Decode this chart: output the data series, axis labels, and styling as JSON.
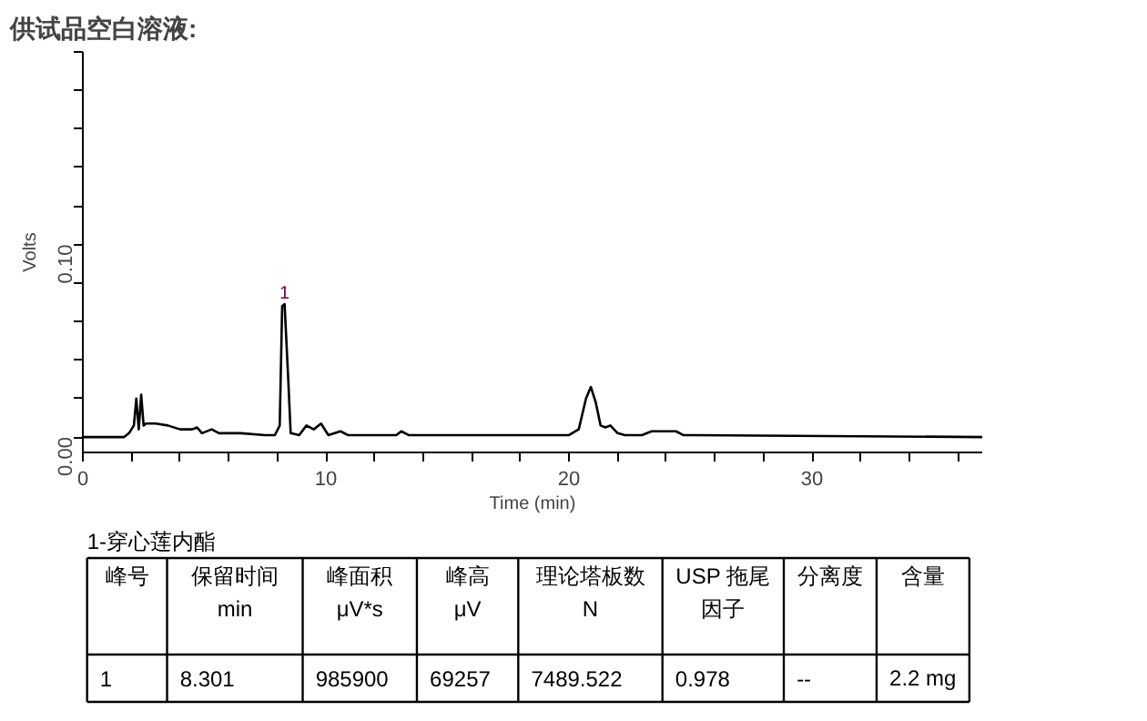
{
  "chart_data": {
    "type": "line",
    "title": "供试品空白溶液:",
    "xlabel": "Time (min)",
    "ylabel": "Volts",
    "xlim": [
      0,
      37
    ],
    "ylim": [
      -0.008,
      0.2
    ],
    "xticks": [
      0,
      {
        "value": 2,
        "label": null
      },
      {
        "value": 4,
        "label": null
      },
      {
        "value": 6,
        "label": null
      },
      {
        "value": 8,
        "label": null
      },
      10,
      {
        "value": 12,
        "label": null
      },
      {
        "value": 14,
        "label": null
      },
      {
        "value": 16,
        "label": null
      },
      {
        "value": 18,
        "label": null
      },
      20,
      {
        "value": 22,
        "label": null
      },
      {
        "value": 24,
        "label": null
      },
      {
        "value": 26,
        "label": null
      },
      {
        "value": 28,
        "label": null
      },
      30,
      {
        "value": 32,
        "label": null
      },
      {
        "value": 34,
        "label": null
      },
      {
        "value": 36,
        "label": null
      }
    ],
    "yticks": [
      {
        "value": 0,
        "label": "0.00"
      },
      {
        "value": 0.02,
        "label": null
      },
      {
        "value": 0.04,
        "label": null
      },
      {
        "value": 0.06,
        "label": null
      },
      {
        "value": 0.08,
        "label": null
      },
      {
        "value": 0.1,
        "label": "0.10"
      },
      {
        "value": 0.12,
        "label": null
      },
      {
        "value": 0.14,
        "label": null
      },
      {
        "value": 0.16,
        "label": null
      },
      {
        "value": 0.18,
        "label": null
      },
      {
        "value": 0.2,
        "label": null
      }
    ],
    "series": [
      {
        "color": "#000000",
        "x": [
          0,
          1.7,
          1.9,
          2.1,
          2.2,
          2.3,
          2.4,
          2.5,
          2.6,
          3.0,
          3.5,
          4.0,
          4.5,
          4.7,
          4.9,
          5.3,
          5.6,
          6.5,
          7.5,
          7.9,
          8.1,
          8.2,
          8.3,
          8.45,
          8.55,
          8.9,
          9.2,
          9.5,
          9.8,
          10.1,
          10.6,
          10.9,
          12.9,
          13.1,
          13.4,
          19.5,
          20.0,
          20.4,
          20.7,
          20.9,
          21.1,
          21.3,
          21.5,
          21.7,
          22.0,
          22.3,
          23.0,
          23.4,
          24.0,
          24.4,
          24.7,
          37
        ],
        "values": [
          0,
          0,
          0.002,
          0.006,
          0.02,
          0.004,
          0.022,
          0.006,
          0.007,
          0.007,
          0.006,
          0.004,
          0.004,
          0.005,
          0.002,
          0.004,
          0.002,
          0.002,
          0.001,
          0.001,
          0.006,
          0.068,
          0.069,
          0.03,
          0.002,
          0.001,
          0.006,
          0.004,
          0.007,
          0.001,
          0.003,
          0.001,
          0.001,
          0.003,
          0.001,
          0.001,
          0.001,
          0.004,
          0.02,
          0.026,
          0.018,
          0.006,
          0.005,
          0.006,
          0.002,
          0.001,
          0.001,
          0.003,
          0.003,
          0.003,
          0.001,
          0
        ]
      }
    ],
    "annotations": [
      {
        "text": "1",
        "x": 8.3,
        "y": 0.069
      },
      "1-穿心莲内酯",
      "峰号",
      "保留时间",
      "峰面积",
      "峰高",
      "理论塔板数",
      "USP 拖尾",
      "分离度",
      "含量",
      "min",
      "μV*s",
      "μV",
      "N",
      "因子",
      "1",
      "8.301",
      "985900",
      "69257",
      "7489.522",
      "0.978",
      "--",
      "2.2 mg"
    ]
  }
}
